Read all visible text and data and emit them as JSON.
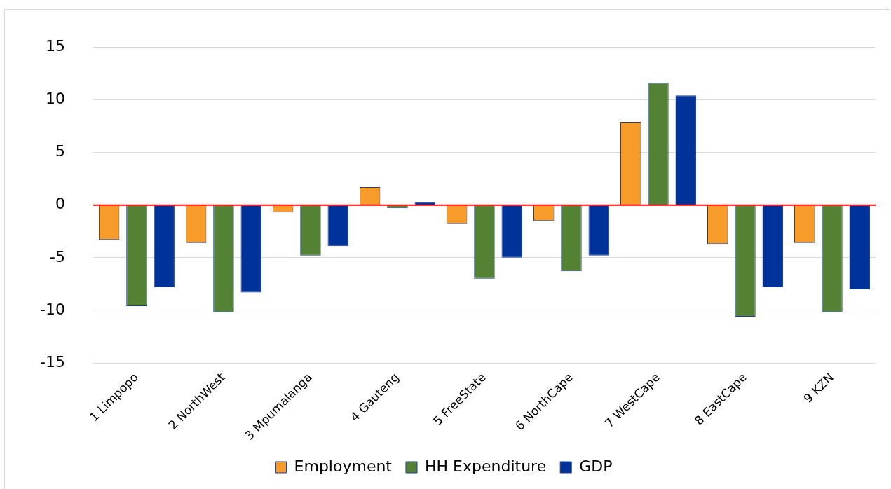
{
  "chart_data": {
    "type": "bar",
    "categories": [
      "1 Limpopo",
      "2 NorthWest",
      "3 Mpumalanga",
      "4 Gauteng",
      "5 FreeState",
      "6 NorthCape",
      "7 WestCape",
      "8 EastCape",
      "9 KZN"
    ],
    "series": [
      {
        "name": "Employment",
        "color": "#f79b2b",
        "values": [
          -3.3,
          -3.6,
          -0.7,
          1.7,
          -1.8,
          -1.5,
          7.9,
          -3.7,
          -3.6
        ]
      },
      {
        "name": "HH Expenditure",
        "color": "#548235",
        "values": [
          -9.6,
          -10.2,
          -4.8,
          -0.3,
          -7.0,
          -6.3,
          11.6,
          -10.6,
          -10.2
        ]
      },
      {
        "name": "GDP",
        "color": "#003399",
        "values": [
          -7.8,
          -8.3,
          -3.9,
          0.3,
          -5.0,
          -4.8,
          10.4,
          -7.8,
          -8.0
        ]
      }
    ],
    "ylim": [
      -15,
      15
    ],
    "yticks": [
      -15,
      -10,
      -5,
      0,
      5,
      10,
      15
    ],
    "grid": "y",
    "legend": "bottom",
    "ref_lines": [
      {
        "axis": "y",
        "value": 0,
        "color": "#ff0000"
      }
    ]
  }
}
